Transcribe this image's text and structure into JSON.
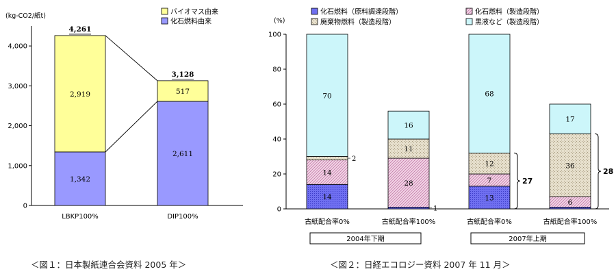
{
  "chart_data": [
    {
      "type": "bar",
      "stacked": true,
      "ylabel": "(kg-CO2/紙t)",
      "ylim": [
        0,
        4500
      ],
      "yticks": [
        "0",
        "1,000",
        "2,000",
        "3,000",
        "4,000"
      ],
      "ytick_values": [
        0,
        1000,
        2000,
        3000,
        4000
      ],
      "categories": [
        "LBKP100%",
        "DIP100%"
      ],
      "series": [
        {
          "name": "化石燃料由来",
          "values": [
            1342,
            2611
          ],
          "labels": [
            "1,342",
            "2,611"
          ],
          "color": "#9999ff"
        },
        {
          "name": "バイオマス由来",
          "values": [
            2919,
            517
          ],
          "labels": [
            "2,919",
            "517"
          ],
          "color": "#ffff99"
        }
      ],
      "totals": [
        "4,261",
        "3,128"
      ],
      "legend_order": [
        "バイオマス由来",
        "化石燃料由来"
      ],
      "caption": "＜図１：日本製紙連合会資料 2005 年＞"
    },
    {
      "type": "bar",
      "stacked": true,
      "ylabel": "(%)",
      "ylim": [
        0,
        100
      ],
      "yticks": [
        "0",
        "20",
        "40",
        "60",
        "80",
        "100"
      ],
      "ytick_values": [
        0,
        20,
        40,
        60,
        80,
        100
      ],
      "categories": [
        "古紙配合率0%",
        "古紙配合率100%",
        "古紙配合率0%",
        "古紙配合率100%"
      ],
      "groups": [
        "2004年下期",
        "2007年上期"
      ],
      "series": [
        {
          "name": "化石燃料（原料調達段階）",
          "values": [
            14,
            1,
            13,
            1
          ],
          "labels": [
            "14",
            "1",
            "13",
            ""
          ],
          "color": "#6666ee"
        },
        {
          "name": "化石燃料（製造段階）",
          "values": [
            14,
            28,
            7,
            6
          ],
          "labels": [
            "14",
            "28",
            "7",
            "6"
          ],
          "color": "#e8b8d8"
        },
        {
          "name": "廃棄物燃料（製造段階）",
          "values": [
            2,
            11,
            12,
            36
          ],
          "labels": [
            "2",
            "11",
            "12",
            "36"
          ],
          "color": "#ddd6c2"
        },
        {
          "name": "黒液など（製造段階）",
          "values": [
            70,
            16,
            68,
            17
          ],
          "labels": [
            "70",
            "16",
            "68",
            "17"
          ],
          "color": "#ccf6fa"
        }
      ],
      "brackets": [
        {
          "bar": 2,
          "label": "27"
        },
        {
          "bar": 3,
          "label": "28"
        }
      ],
      "caption": "＜図２：日経エコロジー資料 2007 年 11 月＞"
    }
  ],
  "colors": {
    "axis": "#000000",
    "connector": "#000000"
  }
}
